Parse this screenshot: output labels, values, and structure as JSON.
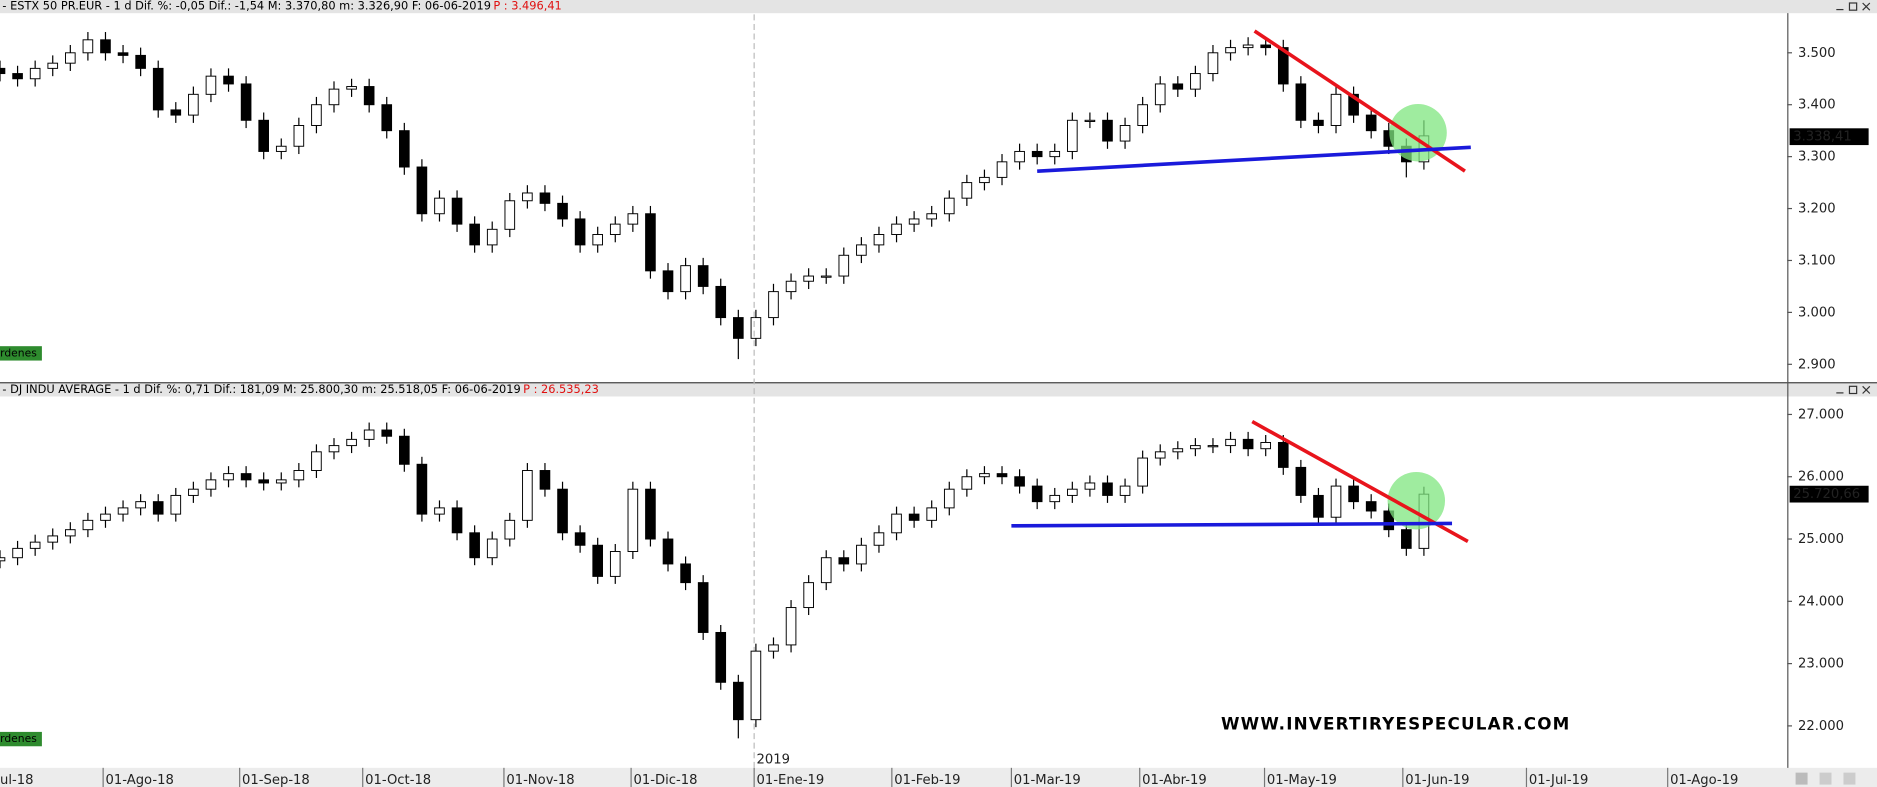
{
  "chart_data": [
    {
      "type": "candlestick",
      "header": "- ESTX 50 PR.EUR -   1 d Dif. %: -0,05 Dif.: -1,54 M: 3.370,80 m: 3.326,90 F: 06-06-2019",
      "price_note": "P : 3.496,41",
      "tag": "Órdenes",
      "xlim": [
        0,
        305
      ],
      "ylim": [
        2868,
        3574
      ],
      "yticks": [
        {
          "value": 2900,
          "label": "2.900"
        },
        {
          "value": 3000,
          "label": "3.000"
        },
        {
          "value": 3100,
          "label": "3.100"
        },
        {
          "value": 3200,
          "label": "3.200"
        },
        {
          "value": 3300,
          "label": "3.300"
        },
        {
          "value": 3400,
          "label": "3.400"
        },
        {
          "value": 3500,
          "label": "3.500"
        }
      ],
      "last_price": {
        "value": 3338.41,
        "label": "3.338,41"
      },
      "x": [
        0,
        3,
        6,
        9,
        12,
        15,
        18,
        21,
        24,
        27,
        30,
        33,
        36,
        39,
        42,
        45,
        48,
        51,
        54,
        57,
        60,
        63,
        66,
        69,
        72,
        75,
        78,
        81,
        84,
        87,
        90,
        93,
        96,
        99,
        102,
        105,
        108,
        111,
        114,
        117,
        120,
        123,
        126,
        129,
        132,
        135,
        138,
        141,
        144,
        147,
        150,
        153,
        156,
        159,
        162,
        165,
        168,
        171,
        174,
        177,
        180,
        183,
        186,
        189,
        192,
        195,
        198,
        201,
        204,
        207,
        210,
        213,
        216,
        219,
        222,
        225,
        228,
        231,
        234,
        237,
        240,
        243
      ],
      "open": [
        3470,
        3460,
        3450,
        3470,
        3480,
        3500,
        3525,
        3500,
        3495,
        3470,
        3390,
        3380,
        3420,
        3455,
        3440,
        3370,
        3310,
        3320,
        3360,
        3400,
        3430,
        3435,
        3400,
        3350,
        3280,
        3190,
        3220,
        3170,
        3130,
        3160,
        3215,
        3230,
        3210,
        3180,
        3130,
        3150,
        3170,
        3190,
        3080,
        3040,
        3090,
        3050,
        2990,
        2950,
        2990,
        3040,
        3060,
        3070,
        3070,
        3110,
        3130,
        3150,
        3170,
        3180,
        3190,
        3220,
        3250,
        3260,
        3290,
        3310,
        3300,
        3310,
        3370,
        3370,
        3330,
        3360,
        3400,
        3440,
        3430,
        3460,
        3500,
        3510,
        3515,
        3510,
        3440,
        3370,
        3360,
        3420,
        3380,
        3350,
        3320,
        3290
      ],
      "high": [
        3485,
        3475,
        3485,
        3495,
        3515,
        3540,
        3540,
        3515,
        3510,
        3485,
        3405,
        3435,
        3470,
        3470,
        3455,
        3385,
        3335,
        3375,
        3415,
        3445,
        3450,
        3450,
        3415,
        3365,
        3295,
        3235,
        3235,
        3185,
        3175,
        3230,
        3245,
        3245,
        3225,
        3195,
        3165,
        3185,
        3205,
        3205,
        3095,
        3105,
        3105,
        3065,
        3005,
        3005,
        3055,
        3075,
        3085,
        3085,
        3125,
        3145,
        3165,
        3185,
        3195,
        3205,
        3235,
        3265,
        3275,
        3305,
        3325,
        3325,
        3325,
        3385,
        3385,
        3385,
        3375,
        3415,
        3455,
        3455,
        3475,
        3515,
        3525,
        3530,
        3530,
        3525,
        3455,
        3385,
        3435,
        3435,
        3395,
        3365,
        3335,
        3370
      ],
      "low": [
        3445,
        3435,
        3435,
        3455,
        3465,
        3485,
        3485,
        3480,
        3455,
        3375,
        3365,
        3365,
        3405,
        3425,
        3355,
        3295,
        3295,
        3305,
        3345,
        3385,
        3415,
        3385,
        3335,
        3265,
        3175,
        3175,
        3155,
        3115,
        3115,
        3145,
        3200,
        3195,
        3165,
        3115,
        3115,
        3135,
        3155,
        3065,
        3025,
        3025,
        3035,
        2975,
        2910,
        2935,
        2975,
        3025,
        3045,
        3055,
        3055,
        3095,
        3115,
        3135,
        3155,
        3165,
        3175,
        3205,
        3235,
        3245,
        3275,
        3285,
        3285,
        3295,
        3355,
        3315,
        3315,
        3345,
        3385,
        3415,
        3415,
        3445,
        3485,
        3495,
        3495,
        3425,
        3355,
        3345,
        3345,
        3365,
        3335,
        3305,
        3260,
        3275
      ],
      "close": [
        3460,
        3450,
        3470,
        3480,
        3500,
        3525,
        3500,
        3495,
        3470,
        3390,
        3380,
        3420,
        3455,
        3440,
        3370,
        3310,
        3320,
        3360,
        3400,
        3430,
        3435,
        3400,
        3350,
        3280,
        3190,
        3220,
        3170,
        3130,
        3160,
        3215,
        3230,
        3210,
        3180,
        3130,
        3150,
        3170,
        3190,
        3080,
        3040,
        3090,
        3050,
        2990,
        2950,
        2990,
        3040,
        3060,
        3070,
        3070,
        3110,
        3130,
        3150,
        3170,
        3180,
        3190,
        3220,
        3250,
        3260,
        3290,
        3310,
        3300,
        3310,
        3370,
        3370,
        3330,
        3360,
        3400,
        3440,
        3430,
        3460,
        3500,
        3510,
        3515,
        3510,
        3440,
        3370,
        3360,
        3420,
        3380,
        3350,
        3320,
        3290,
        3340
      ],
      "trend_lines": [
        {
          "color": "#e8141c",
          "x": [
            214.1,
            250
          ],
          "y": [
            3542,
            3272
          ]
        },
        {
          "color": "#1a1adb",
          "x": [
            177,
            251
          ],
          "y": [
            3272,
            3318
          ]
        }
      ],
      "highlight": {
        "color": "#7fe57f",
        "x": 242,
        "y": 3346
      }
    },
    {
      "type": "candlestick",
      "header": "- DJ INDU AVERAGE -   1 d Dif. %: 0,71 Dif.: 181,09 M: 25.800,30 m: 25.518,05 F: 06-06-2019",
      "price_note": "P : 26.535,23",
      "tag": "Órdenes",
      "watermark": "WWW.INVERTIRYESPECULAR.COM",
      "xlim": [
        0,
        305
      ],
      "ylim": [
        21346,
        27269
      ],
      "yticks": [
        {
          "value": 22000,
          "label": "22.000"
        },
        {
          "value": 23000,
          "label": "23.000"
        },
        {
          "value": 24000,
          "label": "24.000"
        },
        {
          "value": 25000,
          "label": "25.000"
        },
        {
          "value": 26000,
          "label": "26.000"
        },
        {
          "value": 27000,
          "label": "27.000"
        }
      ],
      "xticks": [
        {
          "value": -9,
          "label": "ul-18"
        },
        {
          "value": 17.6,
          "label": "01-Ago-18"
        },
        {
          "value": 40.9,
          "label": "01-Sep-18"
        },
        {
          "value": 61.9,
          "label": "01-Oct-18"
        },
        {
          "value": 86,
          "label": "01-Nov-18"
        },
        {
          "value": 107.7,
          "label": "01-Dic-18"
        },
        {
          "value": 128.7,
          "label": "01-Ene-19"
        },
        {
          "value": 152.2,
          "label": "01-Feb-19"
        },
        {
          "value": 172.6,
          "label": "01-Mar-19"
        },
        {
          "value": 194.5,
          "label": "01-Abr-19"
        },
        {
          "value": 215.8,
          "label": "01-May-19"
        },
        {
          "value": 239.4,
          "label": "01-Jun-19"
        },
        {
          "value": 260.5,
          "label": "01-Jul-19"
        },
        {
          "value": 284.6,
          "label": "01-Ago-19"
        }
      ],
      "year_marker": {
        "value": 128.7,
        "label": "2019"
      },
      "last_price": {
        "value": 25720.66,
        "label": "25.720,66"
      },
      "x": [
        0,
        3,
        6,
        9,
        12,
        15,
        18,
        21,
        24,
        27,
        30,
        33,
        36,
        39,
        42,
        45,
        48,
        51,
        54,
        57,
        60,
        63,
        66,
        69,
        72,
        75,
        78,
        81,
        84,
        87,
        90,
        93,
        96,
        99,
        102,
        105,
        108,
        111,
        114,
        117,
        120,
        123,
        126,
        129,
        132,
        135,
        138,
        141,
        144,
        147,
        150,
        153,
        156,
        159,
        162,
        165,
        168,
        171,
        174,
        177,
        180,
        183,
        186,
        189,
        192,
        195,
        198,
        201,
        204,
        207,
        210,
        213,
        216,
        219,
        222,
        225,
        228,
        231,
        234,
        237,
        240,
        243
      ],
      "open": [
        24650,
        24700,
        24850,
        24950,
        25050,
        25150,
        25300,
        25400,
        25500,
        25600,
        25400,
        25700,
        25800,
        25950,
        26050,
        25950,
        25900,
        25950,
        26100,
        26400,
        26500,
        26600,
        26750,
        26650,
        26200,
        25400,
        25500,
        25100,
        24700,
        25000,
        25300,
        26100,
        25800,
        25100,
        24900,
        24400,
        24800,
        25800,
        25000,
        24600,
        24300,
        23500,
        22700,
        22100,
        23200,
        23300,
        23900,
        24300,
        24700,
        24600,
        24900,
        25100,
        25400,
        25300,
        25500,
        25800,
        26000,
        26050,
        26000,
        25850,
        25600,
        25700,
        25800,
        25900,
        25700,
        25850,
        26300,
        26400,
        26450,
        26500,
        26500,
        26600,
        26450,
        26550,
        26150,
        25700,
        25350,
        25850,
        25600,
        25450,
        25150,
        24850
      ],
      "high": [
        24820,
        24970,
        25070,
        25170,
        25270,
        25420,
        25520,
        25620,
        25720,
        25720,
        25820,
        25920,
        26070,
        26170,
        26170,
        26070,
        26070,
        26220,
        26520,
        26620,
        26720,
        26870,
        26870,
        26770,
        26320,
        25620,
        25620,
        25220,
        25120,
        25420,
        26220,
        26220,
        25920,
        25220,
        25020,
        24920,
        25920,
        25920,
        25120,
        24720,
        24420,
        23620,
        22820,
        23320,
        23420,
        24020,
        24420,
        24820,
        24820,
        25020,
        25220,
        25520,
        25520,
        25620,
        25920,
        26120,
        26170,
        26170,
        26120,
        25970,
        25820,
        25920,
        26020,
        26020,
        25970,
        26420,
        26520,
        26570,
        26620,
        26620,
        26720,
        26720,
        26670,
        26670,
        26270,
        25820,
        25970,
        25970,
        25720,
        25570,
        25270,
        25840
      ],
      "low": [
        24530,
        24580,
        24730,
        24830,
        24930,
        25030,
        25180,
        25280,
        25380,
        25280,
        25280,
        25580,
        25680,
        25830,
        25830,
        25780,
        25780,
        25830,
        25980,
        26280,
        26380,
        26480,
        26530,
        26080,
        25280,
        25280,
        24980,
        24580,
        24580,
        24880,
        25180,
        25680,
        24980,
        24780,
        24280,
        24280,
        24680,
        24880,
        24480,
        24180,
        23380,
        22580,
        21800,
        21980,
        23080,
        23180,
        23780,
        24180,
        24480,
        24480,
        24780,
        24980,
        25180,
        25180,
        25380,
        25680,
        25880,
        25880,
        25730,
        25480,
        25480,
        25580,
        25680,
        25580,
        25580,
        25730,
        26180,
        26280,
        26330,
        26380,
        26380,
        26330,
        26330,
        26030,
        25580,
        25230,
        25230,
        25480,
        25330,
        25030,
        24730,
        24730
      ],
      "close": [
        24700,
        24850,
        24950,
        25050,
        25150,
        25300,
        25400,
        25500,
        25600,
        25400,
        25700,
        25800,
        25950,
        26050,
        25950,
        25900,
        25950,
        26100,
        26400,
        26500,
        26600,
        26750,
        26650,
        26200,
        25400,
        25500,
        25100,
        24700,
        25000,
        25300,
        26100,
        25800,
        25100,
        24900,
        24400,
        24800,
        25800,
        25000,
        24600,
        24300,
        23500,
        22700,
        22100,
        23200,
        23300,
        23900,
        24300,
        24700,
        24600,
        24900,
        25100,
        25400,
        25300,
        25500,
        25800,
        26000,
        26050,
        26000,
        25850,
        25600,
        25700,
        25800,
        25900,
        25700,
        25850,
        26300,
        26400,
        26450,
        26500,
        26500,
        26600,
        26450,
        26550,
        26150,
        25700,
        25350,
        25850,
        25600,
        25450,
        25150,
        24850,
        25720
      ],
      "trend_lines": [
        {
          "color": "#e8141c",
          "x": [
            213.7,
            250.5
          ],
          "y": [
            26885,
            24962
          ]
        },
        {
          "color": "#1a1adb",
          "x": [
            172.6,
            247.8
          ],
          "y": [
            25212,
            25250
          ]
        }
      ],
      "highlight": {
        "color": "#7fe57f",
        "x": 241.7,
        "y": 25615
      }
    }
  ]
}
